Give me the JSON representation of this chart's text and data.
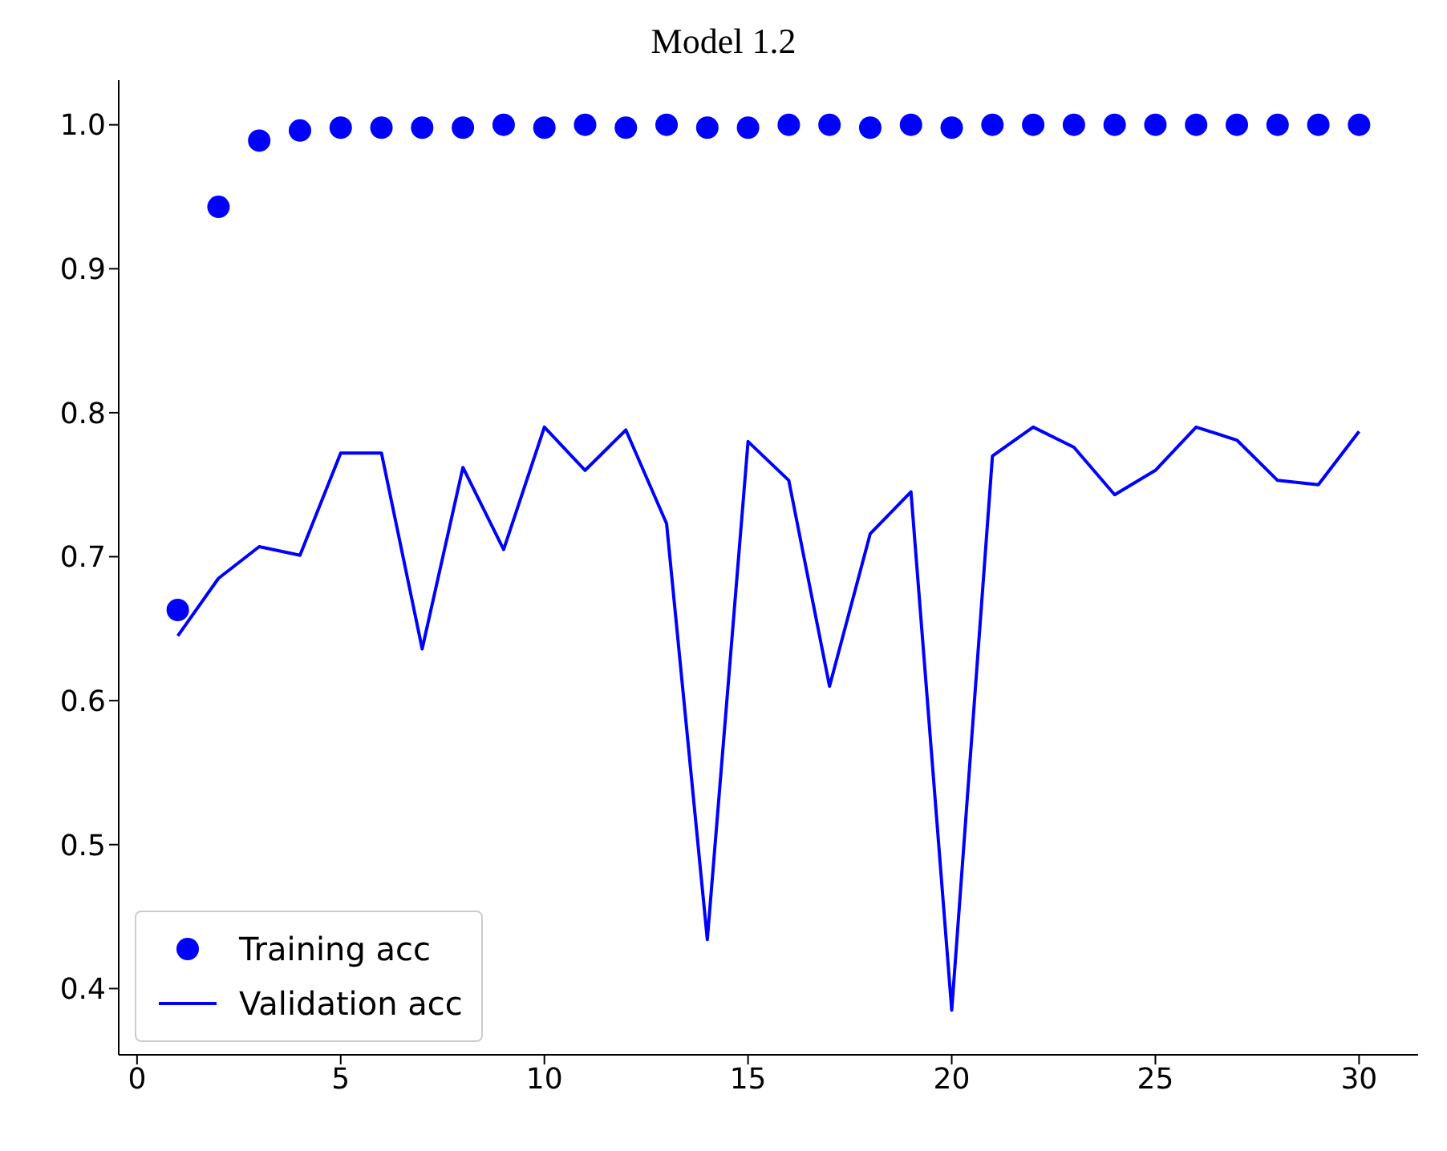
{
  "chart_data": {
    "type": "line",
    "title": "Model 1.2",
    "x": [
      1,
      2,
      3,
      4,
      5,
      6,
      7,
      8,
      9,
      10,
      11,
      12,
      13,
      14,
      15,
      16,
      17,
      18,
      19,
      20,
      21,
      22,
      23,
      24,
      25,
      26,
      27,
      28,
      29,
      30
    ],
    "series": [
      {
        "name": "Training acc",
        "type": "scatter",
        "marker": "circle",
        "color": "#0000ff",
        "values": [
          0.663,
          0.943,
          0.989,
          0.996,
          0.998,
          0.998,
          0.998,
          0.998,
          1.0,
          0.998,
          1.0,
          0.998,
          1.0,
          0.998,
          0.998,
          1.0,
          1.0,
          0.998,
          1.0,
          0.998,
          1.0,
          1.0,
          1.0,
          1.0,
          1.0,
          1.0,
          1.0,
          1.0,
          1.0,
          1.0
        ]
      },
      {
        "name": "Validation acc",
        "line_style": "solid",
        "color": "#0000ff",
        "values": [
          0.645,
          0.685,
          0.707,
          0.701,
          0.772,
          0.772,
          0.636,
          0.762,
          0.705,
          0.79,
          0.76,
          0.788,
          0.723,
          0.434,
          0.78,
          0.753,
          0.61,
          0.716,
          0.745,
          0.385,
          0.77,
          0.79,
          0.776,
          0.743,
          0.76,
          0.79,
          0.781,
          0.753,
          0.75,
          0.787
        ]
      }
    ],
    "xlim": [
      -0.45,
      31.45
    ],
    "xticks": [
      0,
      5,
      10,
      15,
      20,
      25,
      30
    ],
    "ylim": [
      0.354,
      1.031
    ],
    "yticks": [
      0.4,
      0.5,
      0.6,
      0.7,
      0.8,
      0.9,
      {
        "value": 1.0,
        "label": "1.0"
      }
    ],
    "grid": false,
    "legend": "bottom left"
  }
}
